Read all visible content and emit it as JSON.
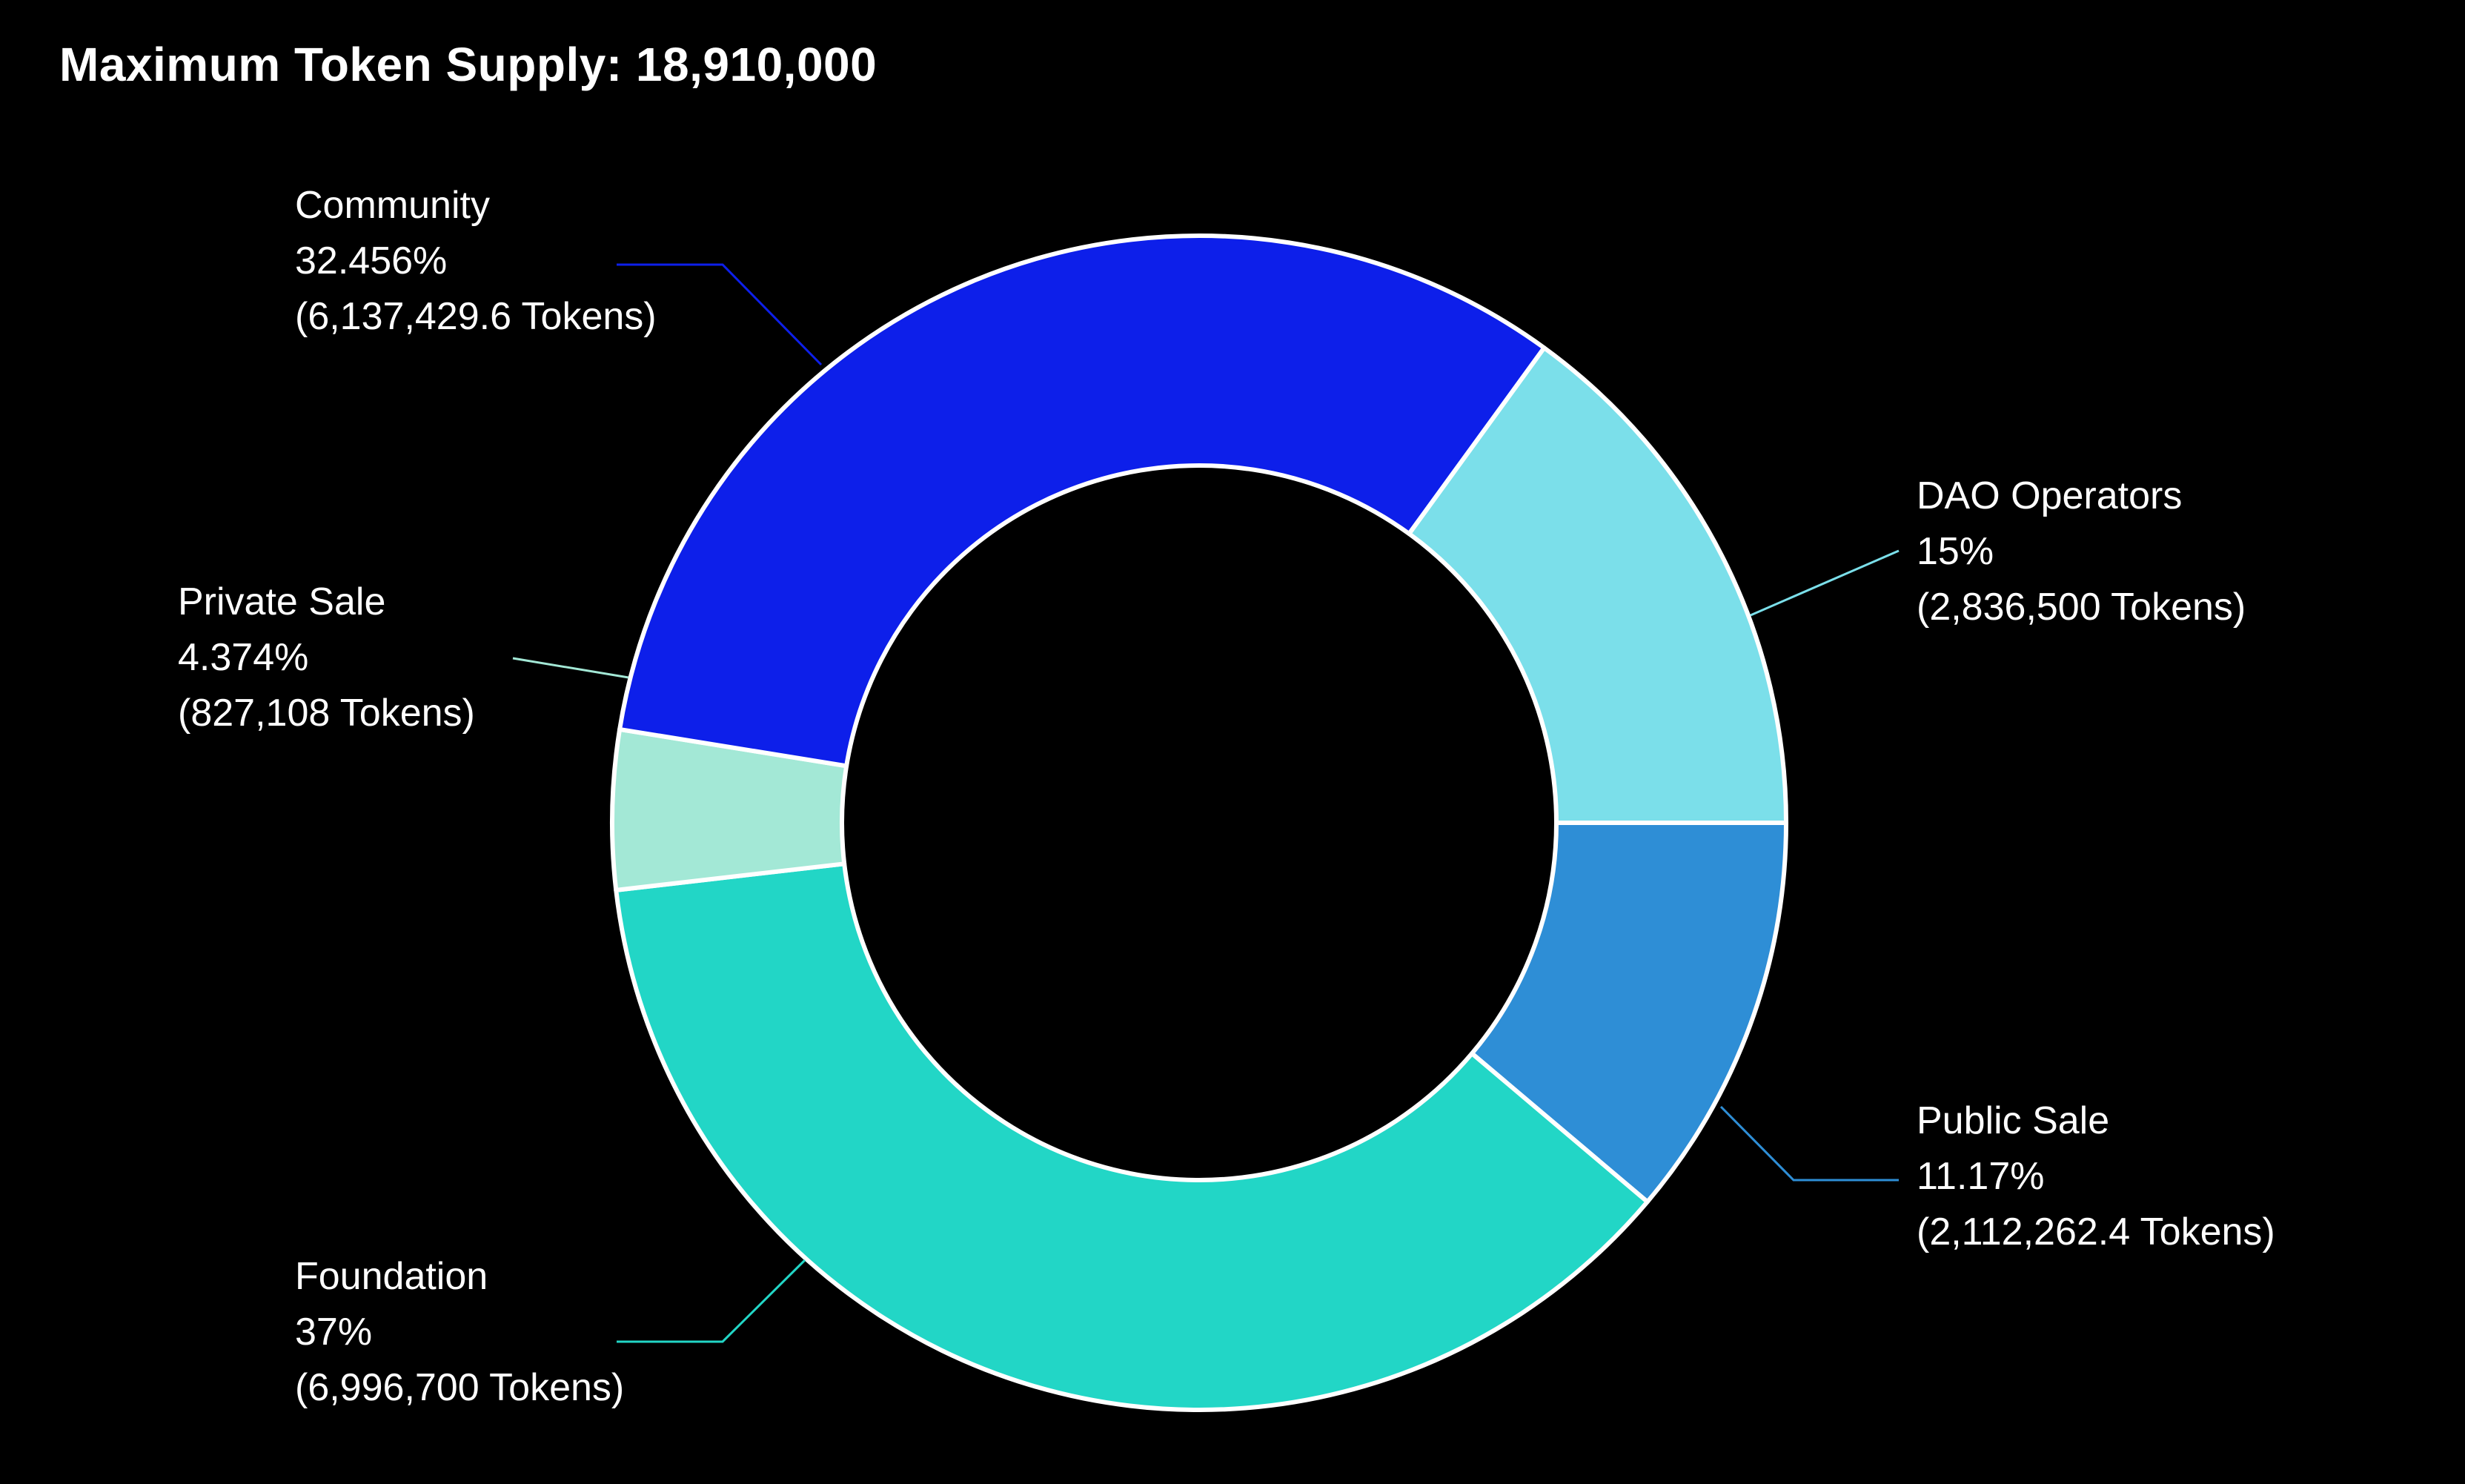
{
  "title": "Maximum Token Supply: 18,910,000",
  "chart_data": {
    "type": "pie",
    "variant": "donut",
    "title": "Maximum Token Supply: 18,910,000",
    "total_tokens": 18910000,
    "slices": [
      {
        "name": "Public Sale",
        "percent": 11.17,
        "percent_label": "11.17%",
        "tokens_label": "(2,112,262.4 Tokens)",
        "tokens": 2112262.4,
        "color": "#2E8ED6"
      },
      {
        "name": "Foundation",
        "percent": 37,
        "percent_label": "37%",
        "tokens_label": "(6,996,700 Tokens)",
        "tokens": 6996700,
        "color": "#22D6C6"
      },
      {
        "name": "Private Sale",
        "percent": 4.374,
        "percent_label": "4.374%",
        "tokens_label": "(827,108 Tokens)",
        "tokens": 827108,
        "color": "#A3E8D6"
      },
      {
        "name": "Community",
        "percent": 32.456,
        "percent_label": "32.456%",
        "tokens_label": "(6,137,429.6 Tokens)",
        "tokens": 6137429.6,
        "color": "#0D1FEA"
      },
      {
        "name": "DAO Operators",
        "percent": 15,
        "percent_label": "15%",
        "tokens_label": "(2,836,500 Tokens)",
        "tokens": 2836500,
        "color": "#7BDFEA"
      }
    ],
    "start_angle": "3 o'clock",
    "direction": "clockwise",
    "background_color": "#000000",
    "separator_color": "#ffffff"
  }
}
